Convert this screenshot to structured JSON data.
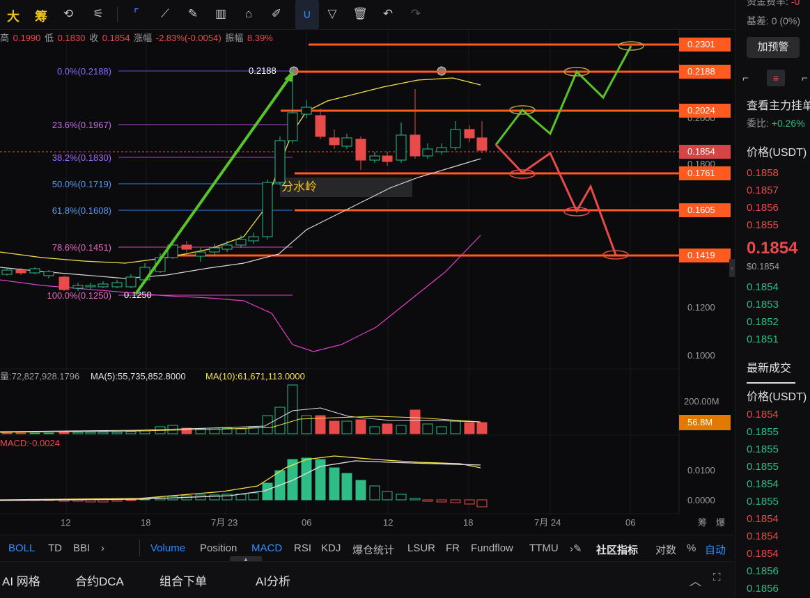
{
  "toolbar": {
    "logo_a": "大",
    "logo_b": "筹"
  },
  "info": {
    "high_label": "高",
    "high": "0.1990",
    "low_label": "低",
    "low": "0.1830",
    "close_label": "收",
    "close": "0.1854",
    "change_label": "涨幅",
    "change": "-2.83%(-0.0054)",
    "amp_label": "振幅",
    "amp": "8.39%"
  },
  "fib": {
    "l0": "0.0%(0.2188)",
    "l236": "23.6%(0.1967)",
    "l382": "38.2%(0.1830)",
    "l50": "50.0%(0.1719)",
    "l618": "61.8%(0.1608)",
    "l786": "78.6%(0.1451)",
    "l100": "100.0%(0.1250)",
    "high_point": "0.2188",
    "low_point": "0.1250"
  },
  "annotation": {
    "watershed": "分水岭"
  },
  "price_axis": [
    "0.2000",
    "0.1800",
    "0.1200",
    "0.1000"
  ],
  "price_tags": {
    "t1": "0.2301",
    "t2": "0.2188",
    "t3": "0.2024",
    "current": "0.1854",
    "t4": "0.1761",
    "t5": "0.1605",
    "t6": "0.1419"
  },
  "volume": {
    "label": "量:72,827,928.1796",
    "ma5": "MA(5):55,735,852.8000",
    "ma10": "MA(10):61,671,113.0000",
    "axis_top": "200.00M",
    "current_tag": "56.8M"
  },
  "macd": {
    "label": "MACD:-0.0024",
    "axis": [
      "0.0100",
      "0.0000"
    ]
  },
  "time_axis": [
    "12",
    "18",
    "7月 23",
    "06",
    "12",
    "18",
    "7月 24",
    "06"
  ],
  "time_axis_right": [
    "筹",
    "爆"
  ],
  "indicators": {
    "left": [
      "BOLL",
      "TD",
      "BBI"
    ],
    "right": [
      "Volume",
      "Position",
      "MACD",
      "RSI",
      "KDJ",
      "爆仓统计",
      "LSUR",
      "FR",
      "Fundflow",
      "TTMU"
    ],
    "community": "社区指标",
    "log": "对数",
    "percent": "%",
    "auto": "自动"
  },
  "bottom_tabs": [
    "AI 网格",
    "合约DCA",
    "组合下单",
    "AI分析"
  ],
  "right_panel": {
    "funding_label": "资金费率:",
    "funding_value": "-0",
    "basis_label": "基差:",
    "basis_value": "0 (0%)",
    "alert_button": "加预警",
    "main_orders": "查看主力挂单",
    "ratio_label": "委比:",
    "ratio_value": "+0.26%",
    "price_header": "价格(USDT)",
    "asks": [
      "0.1858",
      "0.1857",
      "0.1856",
      "0.1855"
    ],
    "last_price": "0.1854",
    "last_price_usd": "$0.1854",
    "bids": [
      "0.1854",
      "0.1853",
      "0.1852",
      "0.1851"
    ],
    "trades_title": "最新成交",
    "trades_header": "价格(USDT)",
    "trades": [
      {
        "p": "0.1854",
        "side": "sell"
      },
      {
        "p": "0.1855",
        "side": "buy"
      },
      {
        "p": "0.1855",
        "side": "buy"
      },
      {
        "p": "0.1855",
        "side": "buy"
      },
      {
        "p": "0.1854",
        "side": "buy"
      },
      {
        "p": "0.1855",
        "side": "buy"
      },
      {
        "p": "0.1854",
        "side": "sell"
      },
      {
        "p": "0.1854",
        "side": "sell"
      },
      {
        "p": "0.1854",
        "side": "sell"
      },
      {
        "p": "0.1856",
        "side": "buy"
      },
      {
        "p": "0.1856",
        "side": "buy"
      }
    ]
  },
  "colors": {
    "up": "#2ebd85",
    "down": "#e94b4b",
    "accent": "#2f8cff",
    "level": "#ff5a1f",
    "arrow_green": "#58c427"
  }
}
